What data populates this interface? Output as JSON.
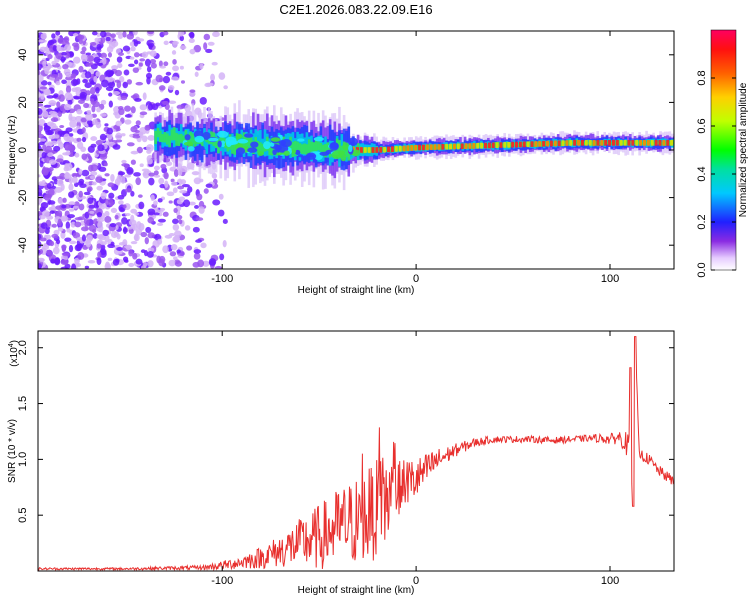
{
  "title": "C2E1.2026.083.22.09.E16",
  "chart_data": [
    {
      "type": "heatmap",
      "name": "spectrogram",
      "xlabel": "Height of straight line (km)",
      "ylabel": "Frequency (Hz)",
      "xlim": [
        -195,
        133
      ],
      "ylim": [
        -50,
        50
      ],
      "x_ticks": [
        -100,
        0,
        100
      ],
      "x_tick_labels": [
        "-100",
        "0",
        "100"
      ],
      "y_ticks": [
        -40,
        -20,
        0,
        20,
        40
      ],
      "y_tick_labels": [
        "-40",
        "-20",
        "0",
        "20",
        "40"
      ],
      "description_series": [
        {
          "name": "noise-region",
          "x": [
            -195,
            -110
          ],
          "freq_range": [
            -50,
            50
          ],
          "amplitude": 0.15
        },
        {
          "name": "signal-band",
          "x": [
            -135,
            133
          ],
          "center_freq": [
            6,
            3,
            2,
            1,
            0,
            0,
            1,
            2,
            3,
            3
          ],
          "center_x": [
            -135,
            -100,
            -70,
            -50,
            -35,
            -20,
            0,
            40,
            80,
            133
          ],
          "amplitude": 0.85
        }
      ]
    },
    {
      "type": "colorbar",
      "name": "amplitude-scale",
      "label": "Normalized spectral amplitude",
      "ylim": [
        0,
        1
      ],
      "ticks": [
        0.0,
        0.2,
        0.4,
        0.6,
        0.8
      ],
      "tick_labels": [
        "0.0",
        "0.2",
        "0.4",
        "0.6",
        "0.8"
      ]
    },
    {
      "type": "line",
      "name": "snr",
      "xlabel": "Height of straight line (km)",
      "ylabel": "SNR (10 * v/v)",
      "scale_label": "(x10",
      "scale_exp": "4",
      "scale_close": ")",
      "color": "#e8302e",
      "xlim": [
        -195,
        133
      ],
      "ylim": [
        0,
        2.15
      ],
      "x_ticks": [
        -100,
        0,
        100
      ],
      "x_tick_labels": [
        "-100",
        "0",
        "100"
      ],
      "y_ticks": [
        0.5,
        1.0,
        1.5,
        2.0
      ],
      "y_tick_labels": [
        "0.5",
        "1.0",
        "1.5",
        "2.0"
      ],
      "x": [
        -195,
        -150,
        -110,
        -100,
        -90,
        -80,
        -70,
        -60,
        -50,
        -45,
        -40,
        -35,
        -30,
        -25,
        -20,
        -15,
        -12,
        -10,
        -5,
        0,
        5,
        10,
        15,
        20,
        30,
        40,
        50,
        60,
        70,
        80,
        90,
        95,
        100,
        105,
        108,
        110,
        112,
        113,
        115,
        120,
        125,
        133
      ],
      "values": [
        0.02,
        0.02,
        0.03,
        0.05,
        0.08,
        0.12,
        0.18,
        0.25,
        0.3,
        0.35,
        0.4,
        0.42,
        0.45,
        0.5,
        0.55,
        0.65,
        0.7,
        0.72,
        0.8,
        0.82,
        0.9,
        0.98,
        1.03,
        1.08,
        1.15,
        1.18,
        1.18,
        1.18,
        1.17,
        1.18,
        1.19,
        1.19,
        1.18,
        1.2,
        1.15,
        1.1,
        0.6,
        2.1,
        1.05,
        1.0,
        0.9,
        0.8
      ],
      "noise_amp": [
        0.01,
        0.01,
        0.02,
        0.04,
        0.06,
        0.1,
        0.15,
        0.22,
        0.3,
        0.32,
        0.35,
        0.38,
        0.4,
        0.42,
        0.45,
        0.45,
        0.3,
        0.25,
        0.22,
        0.2,
        0.15,
        0.12,
        0.08,
        0.06,
        0.04,
        0.03,
        0.03,
        0.03,
        0.03,
        0.03,
        0.03,
        0.04,
        0.05,
        0.06,
        0.1,
        0.12,
        0.0,
        0.0,
        0.05,
        0.05,
        0.05,
        0.05
      ]
    }
  ]
}
